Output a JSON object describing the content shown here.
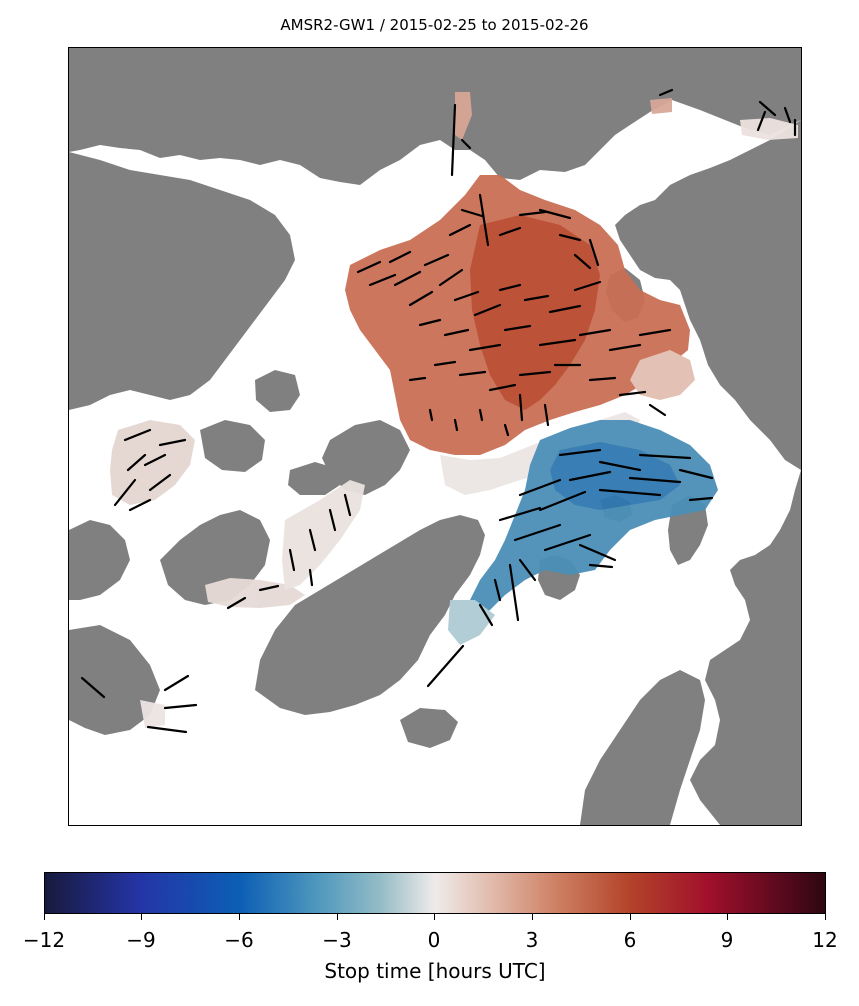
{
  "figure": {
    "title": "AMSR2-GW1 / 2015-02-25 to 2015-02-26"
  },
  "map": {
    "land_color": "#808080",
    "ocean_color": "#ffffff",
    "vector_color": "#000000"
  },
  "colorbar": {
    "label": "Stop time [hours UTC]",
    "range": [
      -12,
      12
    ],
    "ticks": [
      "−12",
      "−9",
      "−6",
      "−3",
      "0",
      "3",
      "6",
      "9",
      "12"
    ],
    "colormap": "diverging blue-white-red (balance)"
  }
}
